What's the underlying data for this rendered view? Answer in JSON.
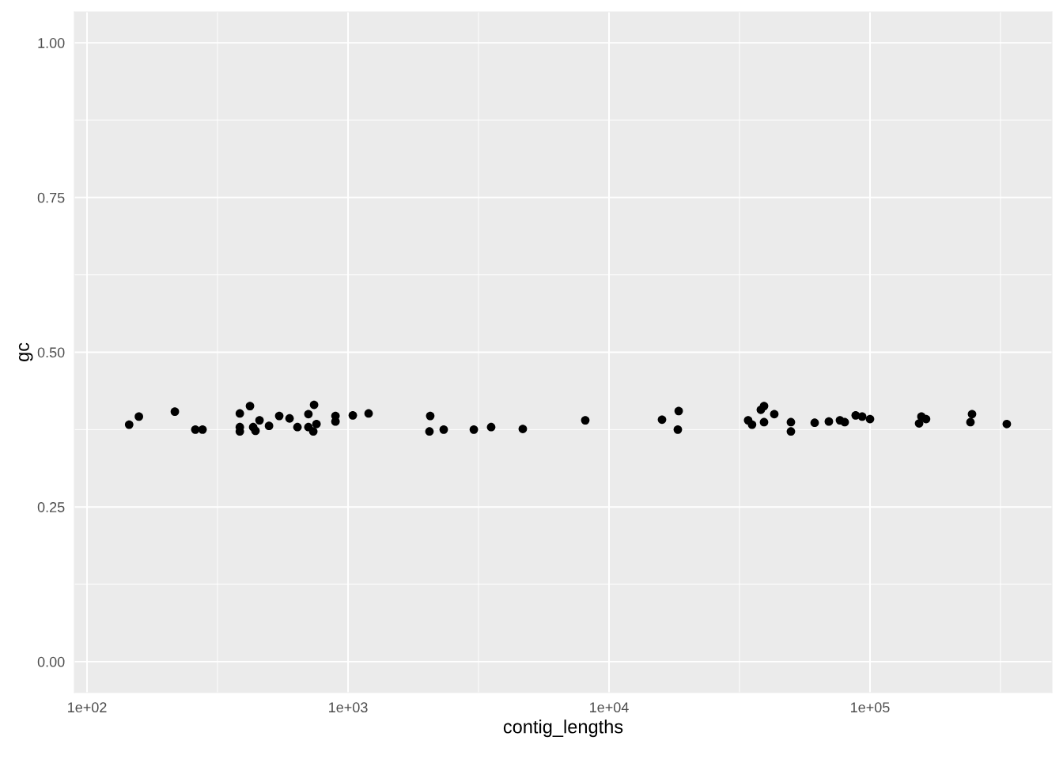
{
  "chart_data": {
    "type": "scatter",
    "xlabel": "contig_lengths",
    "ylabel": "gc",
    "log": "x",
    "grid": true,
    "marker": "circle",
    "xlim": [
      89.4,
      497800
    ],
    "xticks": [
      {
        "value": 100,
        "label": "1e+02"
      },
      {
        "value": 1000,
        "label": "1e+03"
      },
      {
        "value": 10000,
        "label": "1e+04"
      },
      {
        "value": 100000,
        "label": "1e+05"
      }
    ],
    "ylim": [
      -0.05,
      1.05
    ],
    "yticks": [
      {
        "value": 0,
        "label": "0.00"
      },
      {
        "value": 0.25,
        "label": "0.25"
      },
      {
        "value": 0.5,
        "label": "0.50"
      },
      {
        "value": 0.75,
        "label": "0.75"
      },
      {
        "value": 1,
        "label": "1.00"
      }
    ],
    "series": [
      {
        "color": "#000000",
        "x": [
          145,
          158,
          217,
          260,
          277,
          385,
          385,
          385,
          421,
          433,
          442,
          458,
          498,
          545,
          597,
          640,
          705,
          705,
          736,
          741,
          757,
          895,
          895,
          1043,
          1191,
          1199,
          2065,
          2051,
          2326,
          3034,
          3535,
          4673,
          8110,
          15960,
          18490,
          18350,
          34120,
          35320,
          38170,
          39260,
          39260,
          42980,
          49770,
          49770,
          60530,
          61380,
          69560,
          76710,
          80020,
          88130,
          93300,
          100000,
          154200,
          157400,
          164000,
          242600,
          246000,
          334300
        ],
        "values": [
          0.383,
          0.396,
          0.404,
          0.375,
          0.375,
          0.401,
          0.379,
          0.372,
          0.413,
          0.379,
          0.373,
          0.39,
          0.381,
          0.397,
          0.393,
          0.379,
          0.4,
          0.379,
          0.372,
          0.415,
          0.384,
          0.397,
          0.388,
          0.398,
          null,
          0.401,
          0.397,
          0.372,
          0.375,
          0.375,
          0.379,
          0.376,
          0.39,
          0.391,
          0.405,
          0.375,
          0.39,
          0.383,
          0.407,
          0.413,
          0.387,
          0.4,
          0.387,
          0.372,
          null,
          0.386,
          0.388,
          0.39,
          0.387,
          0.398,
          0.396,
          0.392,
          0.385,
          0.396,
          0.392,
          0.387,
          0.4,
          0.384
        ]
      }
    ]
  }
}
